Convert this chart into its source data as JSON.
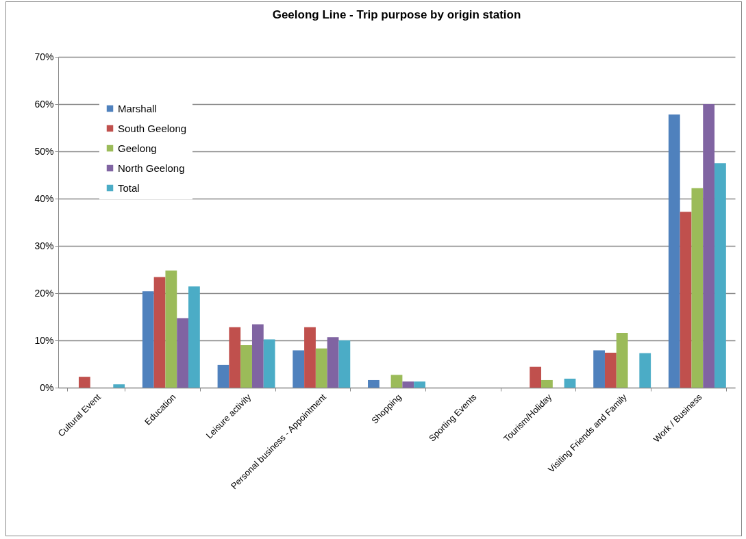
{
  "chart_data": {
    "type": "bar",
    "title": "Geelong Line - Trip purpose by origin station",
    "categories": [
      "Cultural Event",
      "Education",
      "Leisure activity",
      "Personal business - Appointment",
      "Shopping",
      "Sporting Events",
      "Tourism/Holiday",
      "Visiting Friends and Family",
      "Work / Business"
    ],
    "series": [
      {
        "name": "Marshall",
        "color": "#4f81bd",
        "values": [
          0,
          20.4,
          4.8,
          7.9,
          1.6,
          0,
          0,
          7.9,
          57.8
        ]
      },
      {
        "name": "South Geelong",
        "color": "#c0504d",
        "values": [
          2.3,
          23.4,
          12.8,
          12.8,
          0,
          0,
          4.4,
          7.4,
          37.2
        ]
      },
      {
        "name": "Geelong",
        "color": "#9bbb59",
        "values": [
          0,
          24.8,
          9.0,
          8.3,
          2.7,
          0,
          1.6,
          11.6,
          42.2
        ]
      },
      {
        "name": "North Geelong",
        "color": "#8064a2",
        "values": [
          0,
          14.7,
          13.4,
          10.7,
          1.3,
          0,
          0,
          0,
          60.0
        ]
      },
      {
        "name": "Total",
        "color": "#4bacc6",
        "values": [
          0.7,
          21.4,
          10.2,
          10.0,
          1.3,
          0,
          1.9,
          7.3,
          47.5
        ]
      }
    ],
    "ylim": [
      0,
      70
    ],
    "yticks": [
      {
        "value": 0,
        "label": "0%"
      },
      {
        "value": 10,
        "label": "10%"
      },
      {
        "value": 20,
        "label": "20%"
      },
      {
        "value": 30,
        "label": "30%"
      },
      {
        "value": 40,
        "label": "40%"
      },
      {
        "value": 50,
        "label": "50%"
      },
      {
        "value": 60,
        "label": "60%"
      },
      {
        "value": 70,
        "label": "70%"
      }
    ],
    "grid": "y",
    "legend": "top left"
  }
}
